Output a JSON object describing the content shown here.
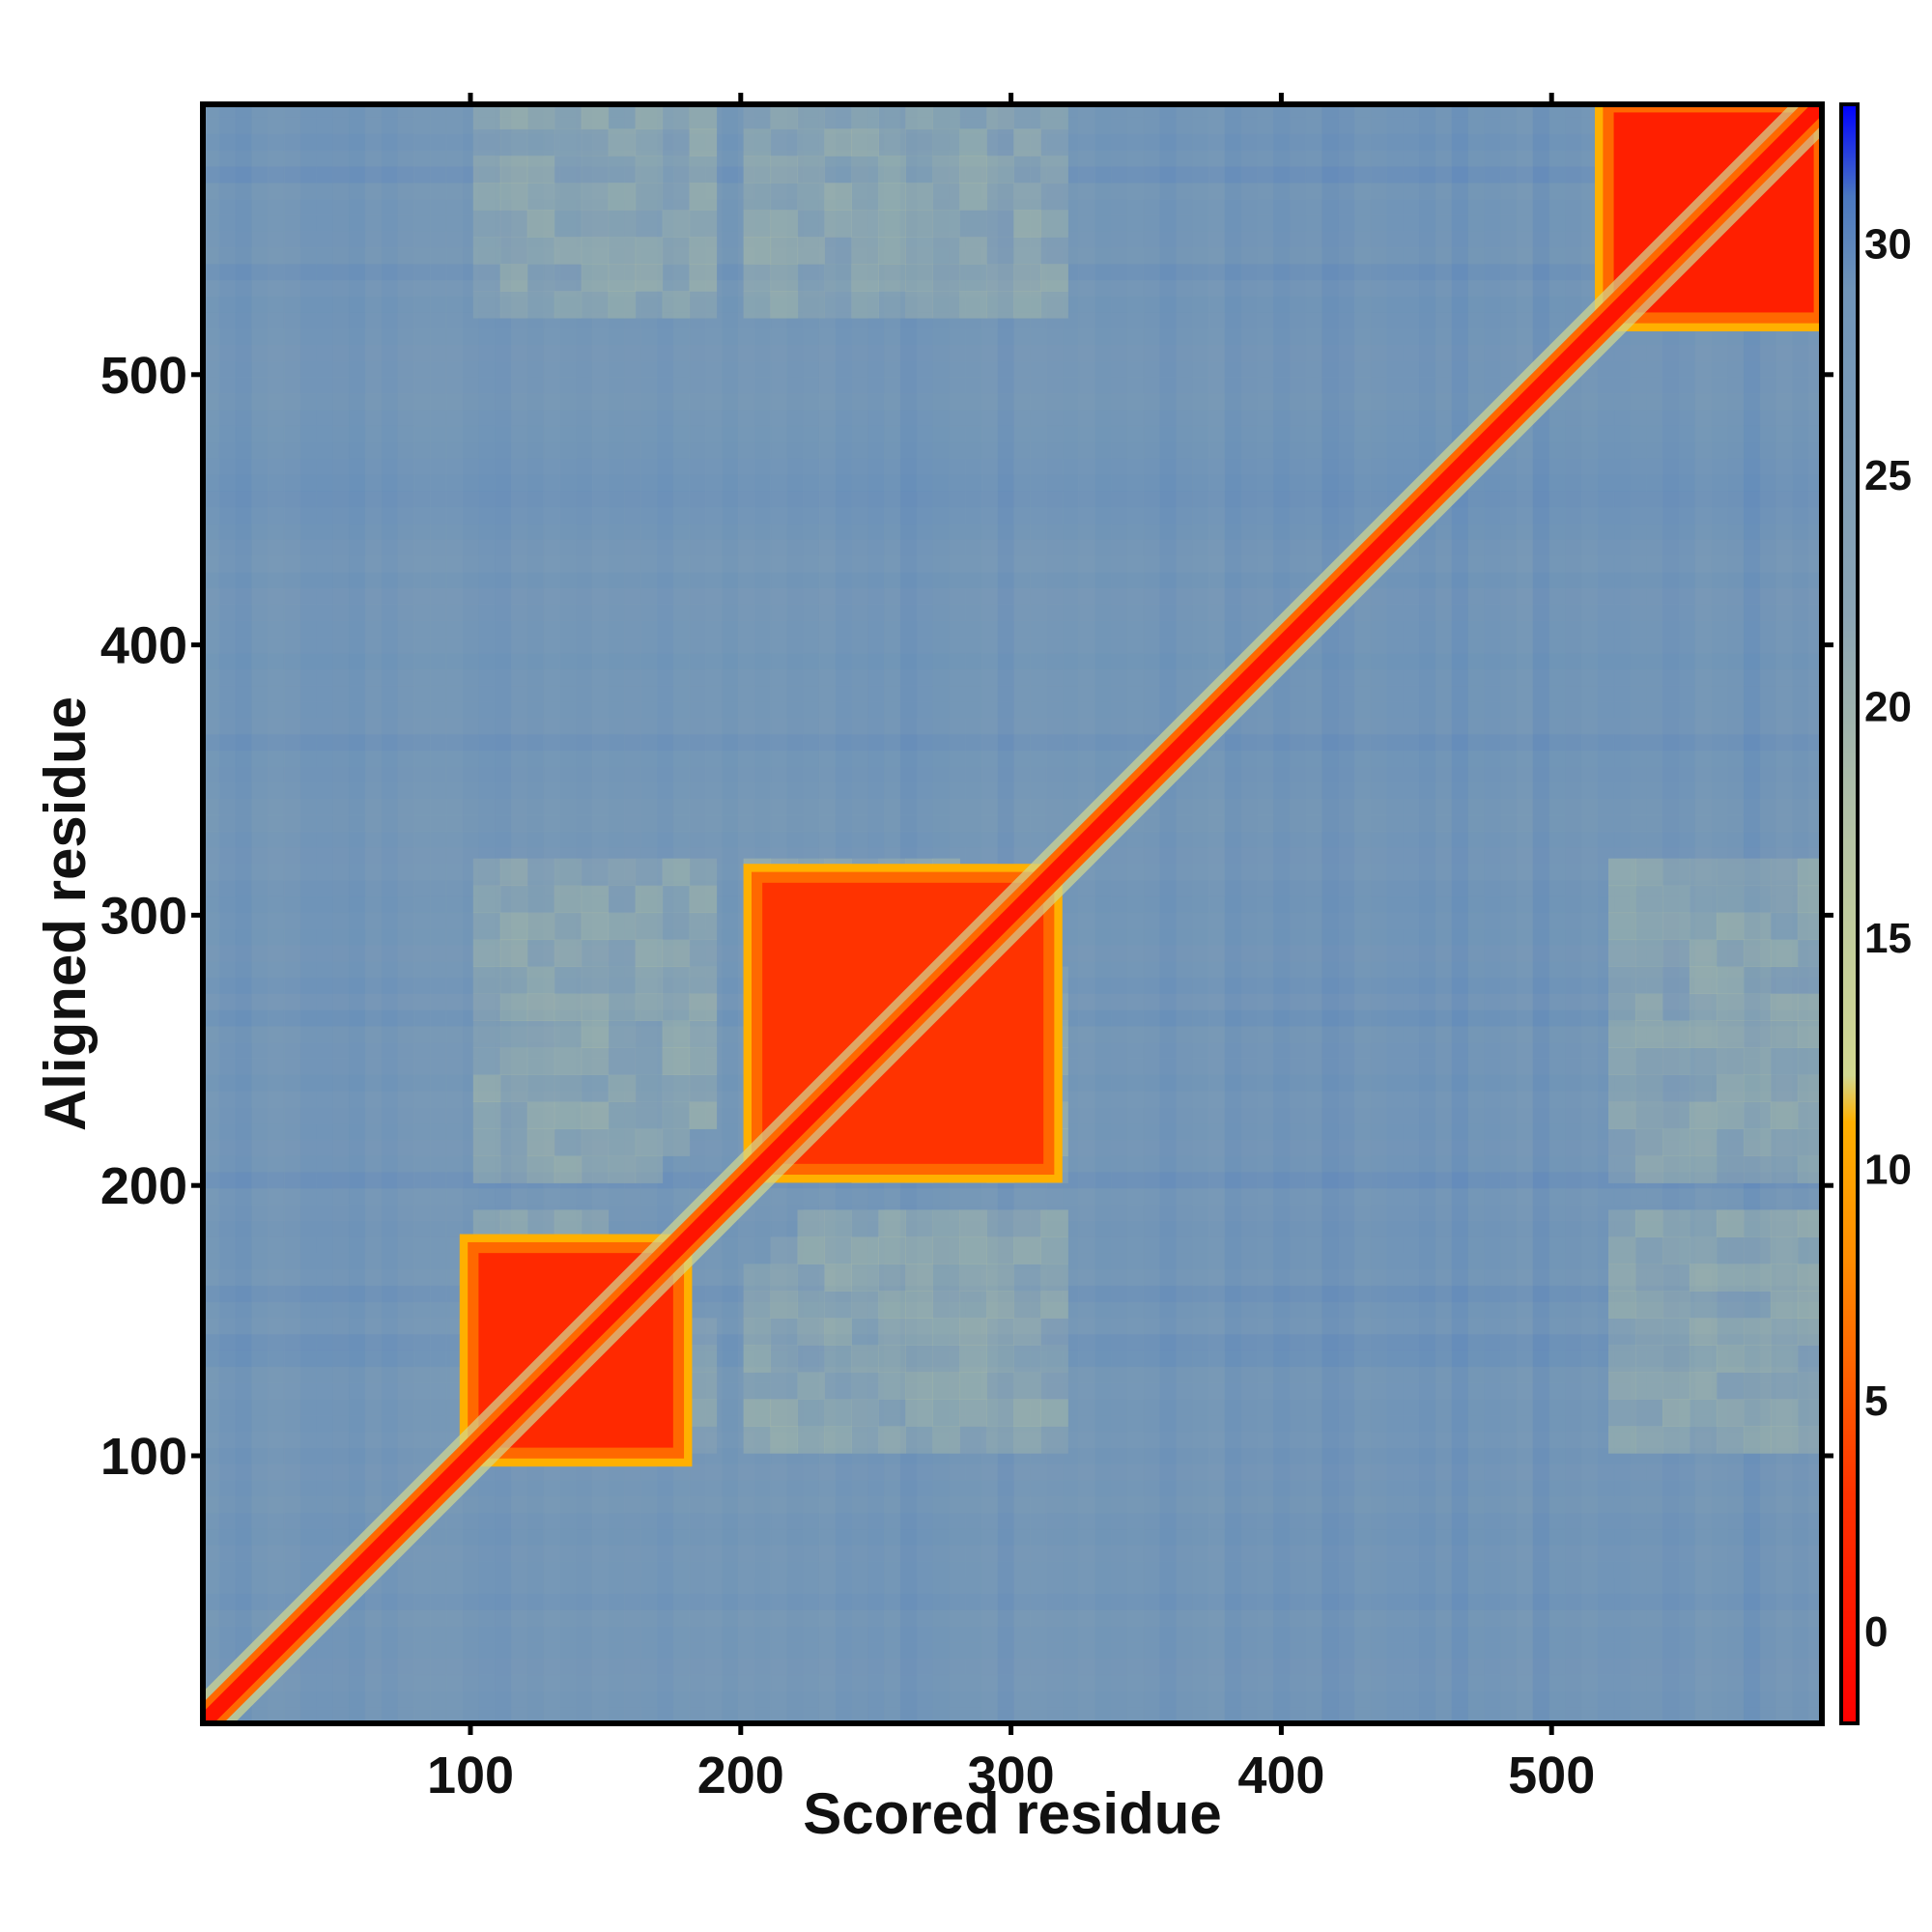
{
  "chart_data": {
    "type": "heatmap",
    "title": "",
    "xlabel": "Scored residue",
    "ylabel": "Aligned residue",
    "xlim": [
      1,
      600
    ],
    "ylim": [
      1,
      600
    ],
    "x_ticks": [
      100,
      200,
      300,
      400,
      500
    ],
    "y_ticks": [
      100,
      200,
      300,
      400,
      500
    ],
    "colorbar": {
      "range": [
        -2,
        33
      ],
      "ticks": [
        0,
        5,
        10,
        15,
        20,
        25,
        30
      ],
      "colors": {
        "low": "#ff0000",
        "orange": "#ff8c00",
        "light": "#d2d890",
        "mid": "#7f9fb0",
        "blue": "#5585c0",
        "top": "#0000ff"
      },
      "stops": [
        {
          "value": -2,
          "color": "#ff0000"
        },
        {
          "value": 3,
          "color": "#ff3300"
        },
        {
          "value": 8,
          "color": "#ff8c00"
        },
        {
          "value": 11,
          "color": "#ffb000"
        },
        {
          "value": 12,
          "color": "#d2d890"
        },
        {
          "value": 17,
          "color": "#b6c4a4"
        },
        {
          "value": 22,
          "color": "#8aa4b4"
        },
        {
          "value": 29,
          "color": "#6f94b8"
        },
        {
          "value": 31,
          "color": "#4a78c0"
        },
        {
          "value": 33,
          "color": "#0000ff"
        }
      ]
    },
    "diagonal_value": 0,
    "background_value": 27,
    "domains": [
      {
        "name": "",
        "start": 100,
        "end": 178,
        "value": 2
      },
      {
        "name": "",
        "start": 205,
        "end": 315,
        "value": 3
      },
      {
        "name": "",
        "start": 520,
        "end": 600,
        "value": 1
      }
    ]
  }
}
